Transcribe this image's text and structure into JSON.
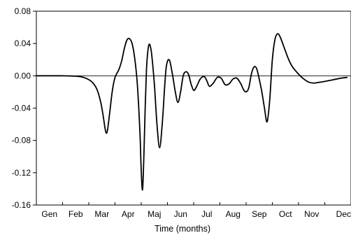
{
  "chart_data": {
    "type": "line",
    "title": "",
    "xlabel": "Time (months)",
    "ylabel": "",
    "x_tick_labels": [
      "Gen",
      "Feb",
      "Mar",
      "Apr",
      "Maj",
      "Jun",
      "Jul",
      "Aug",
      "Sep",
      "Oct",
      "Nov",
      "Dec"
    ],
    "y_ticks": [
      0.08,
      0.04,
      0.0,
      -0.04,
      -0.08,
      -0.12,
      -0.16
    ],
    "y_tick_labels": [
      "0.08",
      "0.04",
      "0.00",
      "-0.04",
      "-0.08",
      "-0.12",
      "-0.16"
    ],
    "xlim": [
      0,
      12
    ],
    "ylim": [
      -0.16,
      0.08
    ],
    "reference_line_y": 0.0,
    "grid": false,
    "legend": "none",
    "line_color": "#000000",
    "series": [
      {
        "x": [
          0.0,
          0.5,
          1.0,
          1.5,
          1.8,
          2.1,
          2.3,
          2.45,
          2.55,
          2.62,
          2.67,
          2.72,
          2.8,
          2.9,
          3.0,
          3.15,
          3.25,
          3.35,
          3.45,
          3.55,
          3.65,
          3.75,
          3.85,
          3.95,
          4.0,
          4.05,
          4.1,
          4.15,
          4.2,
          4.25,
          4.3,
          4.35,
          4.4,
          4.5,
          4.6,
          4.7,
          4.8,
          4.9,
          4.95,
          5.0,
          5.05,
          5.1,
          5.2,
          5.3,
          5.4,
          5.5,
          5.6,
          5.7,
          5.8,
          5.9,
          6.0,
          6.1,
          6.25,
          6.4,
          6.5,
          6.6,
          6.75,
          6.9,
          7.05,
          7.2,
          7.35,
          7.5,
          7.65,
          7.8,
          7.9,
          8.0,
          8.1,
          8.2,
          8.3,
          8.4,
          8.5,
          8.6,
          8.7,
          8.8,
          8.9,
          9.0,
          9.1,
          9.2,
          9.3,
          9.45,
          9.6,
          9.75,
          10.0,
          10.2,
          10.4,
          10.6,
          10.8,
          11.0,
          11.3,
          11.6,
          11.85
        ],
        "y": [
          0.0,
          0.0,
          0.0,
          -0.0005,
          -0.002,
          -0.007,
          -0.016,
          -0.032,
          -0.05,
          -0.065,
          -0.071,
          -0.066,
          -0.045,
          -0.018,
          -0.002,
          0.008,
          0.018,
          0.033,
          0.044,
          0.046,
          0.04,
          0.022,
          -0.01,
          -0.07,
          -0.118,
          -0.141,
          -0.1,
          -0.04,
          0.008,
          0.03,
          0.039,
          0.036,
          0.026,
          -0.01,
          -0.06,
          -0.089,
          -0.06,
          -0.01,
          0.01,
          0.018,
          0.02,
          0.017,
          0.0,
          -0.02,
          -0.033,
          -0.02,
          0.0,
          0.005,
          0.002,
          -0.01,
          -0.018,
          -0.014,
          -0.004,
          -0.001,
          -0.006,
          -0.013,
          -0.009,
          -0.002,
          -0.003,
          -0.011,
          -0.01,
          -0.004,
          -0.003,
          -0.01,
          -0.017,
          -0.02,
          -0.015,
          0.002,
          0.011,
          0.009,
          -0.004,
          -0.02,
          -0.04,
          -0.057,
          -0.03,
          0.02,
          0.045,
          0.052,
          0.048,
          0.035,
          0.022,
          0.012,
          0.002,
          -0.004,
          -0.008,
          -0.009,
          -0.008,
          -0.007,
          -0.005,
          -0.003,
          -0.002
        ]
      }
    ]
  }
}
